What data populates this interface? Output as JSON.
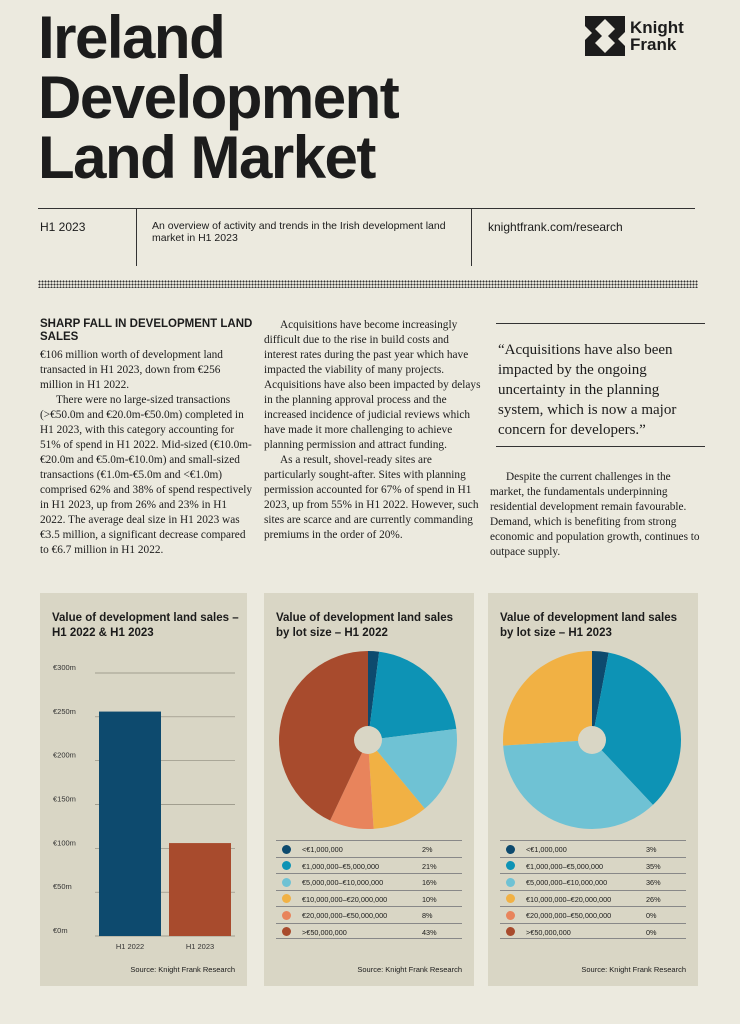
{
  "title": [
    "Ireland",
    "Development",
    "Land Market"
  ],
  "logo": {
    "line1": "Knight",
    "line2": "Frank"
  },
  "meta": {
    "period": "H1 2023",
    "description": "An overview of activity and trends in the Irish development land market in H1 2023",
    "url": "knightfrank.com/research"
  },
  "article": {
    "heading": "SHARP FALL IN DEVELOPMENT LAND SALES",
    "col1": [
      "€106 million worth of development land transacted in H1 2023, down from €256 million in H1 2022.",
      "There were no large-sized transactions (>€50.0m and €20.0m-€50.0m) completed in H1 2023, with this category accounting for 51% of spend in H1 2022. Mid-sized (€10.0m-€20.0m and €5.0m-€10.0m) and small-sized transactions (€1.0m-€5.0m and <€1.0m) comprised 62% and 38% of spend respectively in H1 2023, up from 26% and 23% in H1 2022. The average deal size in H1 2023 was €3.5 million, a significant decrease compared to €6.7 million in H1 2022."
    ],
    "col2": [
      "Acquisitions have become increasingly difficult due to the rise in build costs and interest rates during the past year which have impacted the viability of many projects. Acquisitions have also been impacted by delays in the planning approval process and the increased incidence of judicial reviews which have made it more challenging to achieve planning permission and attract funding.",
      "As a result, shovel-ready sites are particularly sought-after. Sites with planning permission accounted for 67% of spend in H1 2023, up from 55% in H1 2022. However, such sites are scarce and are currently commanding premiums in the order of 20%."
    ],
    "quote": "“Acquisitions have also been impacted by the ongoing uncertainty in the planning system, which is now a major concern for developers.”",
    "col3": "Despite the current challenges in the market, the fundamentals underpinning residential development remain favourable. Demand, which is benefiting from strong economic and population growth, continues to outpace supply."
  },
  "colors": {
    "navy": "#0d4a6e",
    "teal": "#0d93b5",
    "lightblue": "#6fc2d4",
    "yellow": "#f1b144",
    "orange": "#e8845c",
    "rust": "#a84b2d"
  },
  "chart_data": [
    {
      "type": "bar",
      "title": "Value of development land sales – H1 2022 & H1 2023",
      "categories": [
        "H1 2022",
        "H1 2023"
      ],
      "values": [
        256,
        106
      ],
      "ylim": [
        0,
        300
      ],
      "yticks": [
        0,
        50,
        100,
        150,
        200,
        250,
        300
      ],
      "ytick_labels": [
        "€0m",
        "€50m",
        "€100m",
        "€150m",
        "€200m",
        "€250m",
        "€300m"
      ],
      "bar_colors": [
        "#0d4a6e",
        "#a84b2d"
      ],
      "grid": true,
      "source": "Source: Knight Frank Research"
    },
    {
      "type": "pie",
      "title": "Value of development land sales by lot size – H1 2022",
      "categories": [
        "<€1,000,000",
        "€1,000,000–€5,000,000",
        "€5,000,000–€10,000,000",
        "€10,000,000–€20,000,000",
        "€20,000,000–€50,000,000",
        ">€50,000,000"
      ],
      "values": [
        2,
        21,
        16,
        10,
        8,
        43
      ],
      "labels": [
        "2%",
        "21%",
        "16%",
        "10%",
        "8%",
        "43%"
      ],
      "colors": [
        "#0d4a6e",
        "#0d93b5",
        "#6fc2d4",
        "#f1b144",
        "#e8845c",
        "#a84b2d"
      ],
      "source": "Source: Knight Frank Research"
    },
    {
      "type": "pie",
      "title": "Value of development land sales by lot size – H1 2023",
      "categories": [
        "<€1,000,000",
        "€1,000,000–€5,000,000",
        "€5,000,000–€10,000,000",
        "€10,000,000–€20,000,000",
        "€20,000,000–€50,000,000",
        ">€50,000,000"
      ],
      "values": [
        3,
        35,
        36,
        26,
        0,
        0
      ],
      "labels": [
        "3%",
        "35%",
        "36%",
        "26%",
        "0%",
        "0%"
      ],
      "colors": [
        "#0d4a6e",
        "#0d93b5",
        "#6fc2d4",
        "#f1b144",
        "#e8845c",
        "#a84b2d"
      ],
      "source": "Source: Knight Frank Research"
    }
  ]
}
